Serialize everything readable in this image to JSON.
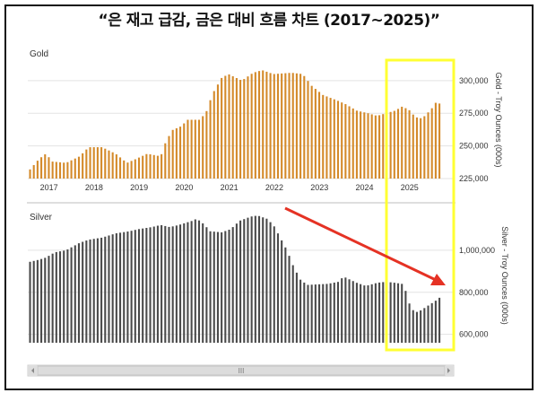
{
  "title": "“은 재고 급감, 금은 대비 흐름 차트 (2017~2025)”",
  "colors": {
    "gold": "#d48a2a",
    "silver": "#4a4a4a",
    "highlight": "#ffff33",
    "arrow": "#e53224",
    "grid": "#e3e3e3"
  },
  "scrollbar": {
    "grip": "III"
  },
  "chart_data": [
    {
      "type": "bar",
      "name_label": "Gold",
      "ylabel": "Gold - Troy Ounces (000s)",
      "ylim": [
        225000,
        315000
      ],
      "yticks": [
        225000,
        250000,
        275000,
        300000
      ],
      "ytick_labels": [
        "225,000",
        "250,000",
        "275,000",
        "300,000"
      ],
      "xlim": [
        2016.55,
        2026.0
      ],
      "xticks": [
        2017,
        2018,
        2019,
        2020,
        2021,
        2022,
        2023,
        2024,
        2025
      ],
      "xtick_labels": [
        "2017",
        "2018",
        "2019",
        "2020",
        "2021",
        "2022",
        "2023",
        "2024",
        "2025"
      ],
      "anchors": [
        [
          2016.6,
          232000
        ],
        [
          2016.8,
          240000
        ],
        [
          2016.95,
          244000
        ],
        [
          2017.1,
          238000
        ],
        [
          2017.4,
          237000
        ],
        [
          2017.7,
          242000
        ],
        [
          2017.9,
          249000
        ],
        [
          2018.2,
          249000
        ],
        [
          2018.5,
          244000
        ],
        [
          2018.75,
          237000
        ],
        [
          2018.95,
          240000
        ],
        [
          2019.2,
          244000
        ],
        [
          2019.5,
          242000
        ],
        [
          2019.6,
          252000
        ],
        [
          2019.75,
          262000
        ],
        [
          2019.95,
          265000
        ],
        [
          2020.1,
          270000
        ],
        [
          2020.35,
          270000
        ],
        [
          2020.5,
          275000
        ],
        [
          2020.65,
          290000
        ],
        [
          2020.85,
          302000
        ],
        [
          2021.0,
          305000
        ],
        [
          2021.3,
          300000
        ],
        [
          2021.55,
          306000
        ],
        [
          2021.75,
          308000
        ],
        [
          2022.0,
          305000
        ],
        [
          2022.4,
          306000
        ],
        [
          2022.65,
          305000
        ],
        [
          2022.85,
          296000
        ],
        [
          2023.1,
          289000
        ],
        [
          2023.4,
          285000
        ],
        [
          2023.6,
          282000
        ],
        [
          2023.85,
          277000
        ],
        [
          2024.1,
          275000
        ],
        [
          2024.3,
          273000
        ],
        [
          2024.5,
          275000
        ],
        [
          2024.7,
          277000
        ],
        [
          2024.85,
          280000
        ],
        [
          2025.0,
          278000
        ],
        [
          2025.15,
          272000
        ],
        [
          2025.3,
          271000
        ],
        [
          2025.5,
          278000
        ],
        [
          2025.6,
          283000
        ],
        [
          2025.75,
          282000
        ]
      ]
    },
    {
      "type": "bar",
      "name_label": "Silver",
      "ylabel": "Silver - Troy Ounces (000s)",
      "ylim": [
        560000,
        1200000
      ],
      "yticks": [
        600000,
        800000,
        1000000
      ],
      "ytick_labels": [
        "600,000",
        "800,000",
        "1,000,000"
      ],
      "xlim": [
        2016.55,
        2026.0
      ],
      "anchors": [
        [
          2016.6,
          945000
        ],
        [
          2016.8,
          955000
        ],
        [
          2016.95,
          965000
        ],
        [
          2017.15,
          990000
        ],
        [
          2017.4,
          1000000
        ],
        [
          2017.7,
          1035000
        ],
        [
          2017.9,
          1050000
        ],
        [
          2018.2,
          1060000
        ],
        [
          2018.5,
          1080000
        ],
        [
          2018.8,
          1090000
        ],
        [
          2019.0,
          1100000
        ],
        [
          2019.3,
          1110000
        ],
        [
          2019.5,
          1120000
        ],
        [
          2019.7,
          1110000
        ],
        [
          2019.9,
          1120000
        ],
        [
          2020.2,
          1140000
        ],
        [
          2020.3,
          1150000
        ],
        [
          2020.45,
          1125000
        ],
        [
          2020.6,
          1090000
        ],
        [
          2020.85,
          1085000
        ],
        [
          2021.05,
          1100000
        ],
        [
          2021.25,
          1140000
        ],
        [
          2021.5,
          1160000
        ],
        [
          2021.65,
          1165000
        ],
        [
          2021.85,
          1150000
        ],
        [
          2022.0,
          1120000
        ],
        [
          2022.15,
          1060000
        ],
        [
          2022.3,
          1000000
        ],
        [
          2022.45,
          920000
        ],
        [
          2022.6,
          860000
        ],
        [
          2022.75,
          835000
        ],
        [
          2023.2,
          840000
        ],
        [
          2023.45,
          850000
        ],
        [
          2023.55,
          875000
        ],
        [
          2023.7,
          860000
        ],
        [
          2023.85,
          845000
        ],
        [
          2024.05,
          830000
        ],
        [
          2024.3,
          845000
        ],
        [
          2024.5,
          850000
        ],
        [
          2024.7,
          845000
        ],
        [
          2024.85,
          840000
        ],
        [
          2024.95,
          800000
        ],
        [
          2025.05,
          720000
        ],
        [
          2025.2,
          705000
        ],
        [
          2025.35,
          725000
        ],
        [
          2025.6,
          760000
        ],
        [
          2025.75,
          785000
        ]
      ]
    }
  ]
}
